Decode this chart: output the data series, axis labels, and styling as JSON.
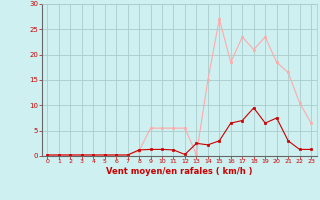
{
  "hours": [
    0,
    1,
    2,
    3,
    4,
    5,
    6,
    7,
    8,
    9,
    10,
    11,
    12,
    13,
    14,
    15,
    16,
    17,
    18,
    19,
    20,
    21,
    22,
    23
  ],
  "rafales": [
    0.2,
    0.2,
    0.2,
    0.2,
    0.2,
    0.2,
    0.2,
    0.2,
    1.0,
    5.5,
    5.5,
    5.5,
    5.5,
    0.3,
    15.0,
    27.0,
    18.5,
    23.5,
    21.0,
    23.5,
    18.5,
    16.5,
    10.5,
    6.5
  ],
  "vent_moyen": [
    0.2,
    0.2,
    0.2,
    0.2,
    0.2,
    0.2,
    0.2,
    0.2,
    1.2,
    1.3,
    1.3,
    1.2,
    0.3,
    2.5,
    2.2,
    3.0,
    6.5,
    7.0,
    9.5,
    6.5,
    7.5,
    3.0,
    1.3,
    1.3
  ],
  "rafales_color": "#ffaaaa",
  "vent_moyen_color": "#cc0000",
  "background_color": "#cef0f0",
  "grid_color": "#aacccc",
  "xlabel": "Vent moyen/en rafales ( km/h )",
  "xlabel_color": "#cc0000",
  "tick_color": "#cc0000",
  "ylim": [
    0,
    30
  ],
  "yticks": [
    0,
    5,
    10,
    15,
    20,
    25,
    30
  ],
  "xticks": [
    0,
    1,
    2,
    3,
    4,
    5,
    6,
    7,
    8,
    9,
    10,
    11,
    12,
    13,
    14,
    15,
    16,
    17,
    18,
    19,
    20,
    21,
    22,
    23
  ]
}
